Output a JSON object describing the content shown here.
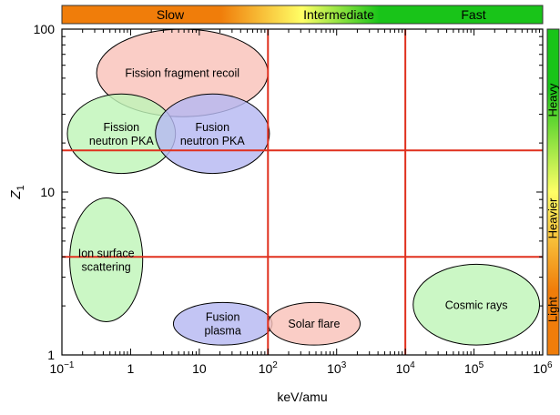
{
  "chart_data": {
    "type": "scatter",
    "xlabel": "keV/amu",
    "ylabel": "Z",
    "ylabel_sub": "1",
    "x_scale": "log",
    "y_scale": "log",
    "xlim": [
      0.1,
      1000000
    ],
    "ylim": [
      1,
      100
    ],
    "x_ticks": [
      {
        "value": 0.1,
        "base": "10",
        "exp": "−1"
      },
      {
        "value": 1,
        "base": "1",
        "exp": ""
      },
      {
        "value": 10,
        "base": "10",
        "exp": ""
      },
      {
        "value": 100,
        "base": "10",
        "exp": "2"
      },
      {
        "value": 1000,
        "base": "10",
        "exp": "3"
      },
      {
        "value": 10000,
        "base": "10",
        "exp": "4"
      },
      {
        "value": 100000,
        "base": "10",
        "exp": "5"
      },
      {
        "value": 1000000,
        "base": "10",
        "exp": "6"
      }
    ],
    "y_ticks": [
      {
        "value": 1,
        "label": "1"
      },
      {
        "value": 10,
        "label": "10"
      },
      {
        "value": 100,
        "label": "100"
      }
    ],
    "grid": false,
    "boundary_lines": {
      "color": "#e0301e",
      "vertical_x": [
        100,
        10000
      ],
      "horizontal_y": [
        18,
        4
      ]
    },
    "velocity_bar": {
      "position": "top",
      "labels": [
        "Slow",
        "Intermediate",
        "Fast"
      ],
      "colors": [
        "#f07d0a",
        "#ffff66",
        "#19c419"
      ]
    },
    "mass_bar": {
      "position": "right",
      "labels": [
        "Heavy",
        "Heavier",
        "Light"
      ],
      "colors": [
        "#19c419",
        "#ffff66",
        "#f07d0a"
      ]
    },
    "regions": [
      {
        "label_lines": [
          "Fission fragment recoil"
        ],
        "x": 5,
        "y": 55,
        "x_range": [
          0.32,
          100
        ],
        "y_range": [
          29,
          100
        ],
        "fill": "#f9c2b9"
      },
      {
        "label_lines": [
          "Fission",
          "neutron PKA"
        ],
        "x": 0.8,
        "y": 23,
        "x_range": [
          0.12,
          4.5
        ],
        "y_range": [
          13,
          40
        ],
        "fill": "#c0f5b8"
      },
      {
        "label_lines": [
          "Fusion",
          "neutron PKA"
        ],
        "x": 17,
        "y": 23,
        "x_range": [
          2.3,
          105
        ],
        "y_range": [
          13,
          40
        ],
        "fill": "#b6b8f1"
      },
      {
        "label_lines": [
          "Ion surface",
          "scattering"
        ],
        "x": 0.45,
        "y": 3.9,
        "x_range": [
          0.13,
          1.5
        ],
        "y_range": [
          1.6,
          9.2
        ],
        "fill": "#c0f5b8"
      },
      {
        "label_lines": [
          "Fusion",
          "plasma"
        ],
        "x": 30,
        "y": 1.55,
        "x_range": [
          4.2,
          115
        ],
        "y_range": [
          1.15,
          2.1
        ],
        "fill": "#b6b8f1"
      },
      {
        "label_lines": [
          "Solar flare"
        ],
        "x": 500,
        "y": 1.55,
        "x_range": [
          100,
          2200
        ],
        "y_range": [
          1.15,
          2.1
        ],
        "fill": "#f9c2b9"
      },
      {
        "label_lines": [
          "Cosmic rays"
        ],
        "x": 110000,
        "y": 2.0,
        "x_range": [
          13000,
          900000
        ],
        "y_range": [
          1.15,
          3.6
        ],
        "fill": "#c0f5b8"
      }
    ]
  }
}
